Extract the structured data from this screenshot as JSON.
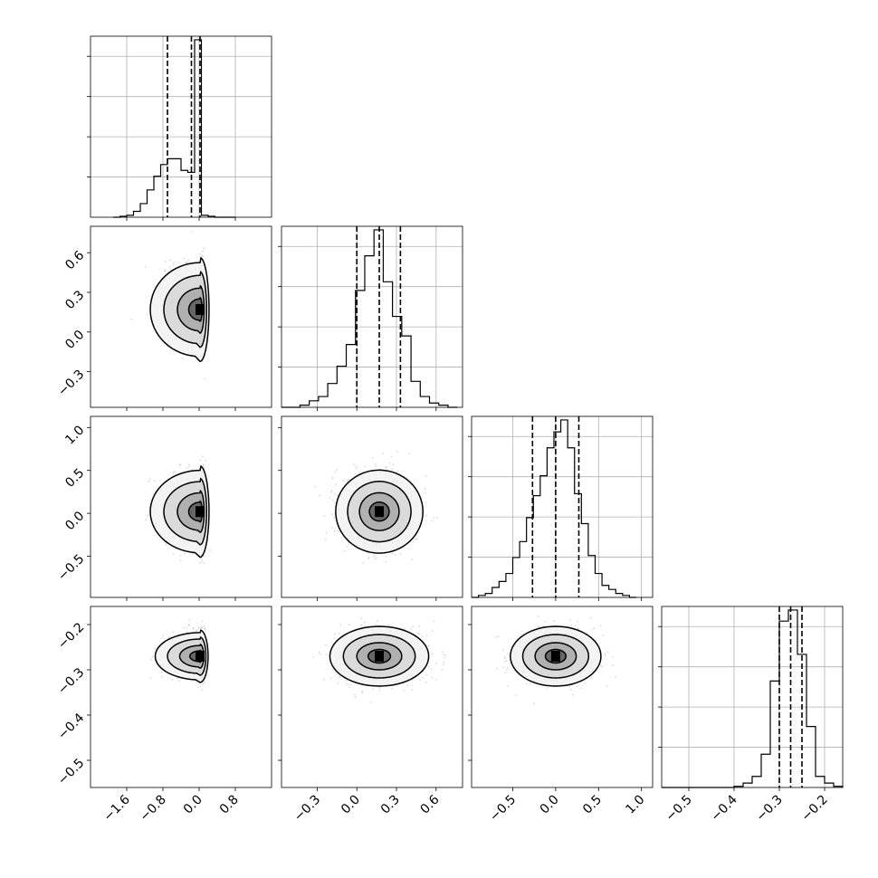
{
  "chart_data": {
    "type": "corner",
    "grid": true,
    "title": "",
    "parameters": [
      {
        "xlim": [
          -2.4,
          1.6
        ],
        "x_ticks": [
          -1.6,
          -0.8,
          0.0,
          0.8
        ],
        "x_tick_labels": [
          "−1.6",
          "−0.8",
          "0.0",
          "0.8"
        ],
        "y_ticks": [
          -0.3,
          0.0,
          0.3,
          0.6
        ],
        "y_tick_labels": [
          "−0.3",
          "0.0",
          "0.3",
          "0.6"
        ],
        "quantiles": [
          -0.7,
          -0.17,
          0.02
        ]
      },
      {
        "xlim": [
          -0.57,
          0.8
        ],
        "x_ticks": [
          -0.3,
          0.0,
          0.3,
          0.6
        ],
        "x_tick_labels": [
          "−0.3",
          "0.0",
          "0.3",
          "0.6"
        ],
        "y_ticks": [
          -0.5,
          0.0,
          0.5,
          1.0
        ],
        "y_tick_labels": [
          "−0.5",
          "0.0",
          "0.5",
          "1.0"
        ],
        "quantiles": [
          0.0,
          0.17,
          0.33
        ]
      },
      {
        "xlim": [
          -0.98,
          1.13
        ],
        "x_ticks": [
          -0.5,
          0.0,
          0.5,
          1.0
        ],
        "x_tick_labels": [
          "−0.5",
          "0.0",
          "0.5",
          "1.0"
        ],
        "y_ticks": [
          -0.5,
          -0.4,
          -0.3,
          -0.2
        ],
        "y_tick_labels": [
          "−0.5",
          "−0.4",
          "−0.3",
          "−0.2"
        ],
        "quantiles": [
          -0.27,
          0.0,
          0.27
        ]
      },
      {
        "xlim": [
          -0.56,
          -0.16
        ],
        "x_ticks": [
          -0.5,
          -0.4,
          -0.3,
          -0.2
        ],
        "x_tick_labels": [
          "−0.5",
          "−0.4",
          "−0.3",
          "−0.2"
        ],
        "quantiles": [
          -0.3,
          -0.275,
          -0.25
        ]
      }
    ],
    "histograms": [
      {
        "bins": [
          -1.9,
          -1.75,
          -1.6,
          -1.45,
          -1.3,
          -1.15,
          -1.0,
          -0.85,
          -0.7,
          -0.55,
          -0.4,
          -0.25,
          -0.1,
          0.05,
          0.2,
          0.35,
          0.5,
          0.65,
          0.8
        ],
        "counts": [
          0,
          1,
          2,
          6,
          14,
          28,
          42,
          54,
          60,
          60,
          48,
          46,
          182,
          2,
          1,
          0,
          0,
          0
        ]
      },
      {
        "bins": [
          -0.57,
          -0.5,
          -0.43,
          -0.36,
          -0.29,
          -0.22,
          -0.15,
          -0.08,
          -0.01,
          0.06,
          0.13,
          0.2,
          0.27,
          0.34,
          0.41,
          0.48,
          0.55,
          0.62,
          0.69,
          0.76
        ],
        "counts": [
          0,
          0,
          2,
          6,
          10,
          22,
          38,
          58,
          108,
          140,
          164,
          116,
          84,
          66,
          24,
          10,
          4,
          2,
          0
        ]
      },
      {
        "bins": [
          -0.98,
          -0.9,
          -0.82,
          -0.74,
          -0.66,
          -0.58,
          -0.5,
          -0.42,
          -0.34,
          -0.26,
          -0.18,
          -0.1,
          -0.02,
          0.06,
          0.14,
          0.22,
          0.3,
          0.38,
          0.46,
          0.54,
          0.62,
          0.7,
          0.78,
          0.86,
          0.94
        ],
        "counts": [
          0,
          2,
          4,
          10,
          16,
          24,
          40,
          56,
          80,
          102,
          122,
          150,
          166,
          178,
          150,
          104,
          74,
          42,
          24,
          12,
          8,
          4,
          2,
          0
        ]
      },
      {
        "bins": [
          -0.56,
          -0.54,
          -0.52,
          -0.5,
          -0.48,
          -0.46,
          -0.44,
          -0.42,
          -0.4,
          -0.38,
          -0.36,
          -0.34,
          -0.32,
          -0.3,
          -0.28,
          -0.26,
          -0.24,
          -0.22,
          -0.2,
          -0.18,
          -0.16
        ],
        "counts": [
          0,
          0,
          0,
          0,
          0,
          0,
          0,
          0,
          1,
          4,
          10,
          30,
          96,
          150,
          160,
          120,
          55,
          10,
          4,
          1
        ]
      }
    ],
    "pairs": [
      {
        "row": 1,
        "col": 0,
        "x_center": 0.02,
        "y_center": 0.17,
        "shape": "lopsided",
        "sigma_x": 0.5,
        "sigma_y": 0.17
      },
      {
        "row": 2,
        "col": 0,
        "x_center": 0.02,
        "y_center": 0.02,
        "shape": "lopsided",
        "sigma_x": 0.5,
        "sigma_y": 0.23
      },
      {
        "row": 2,
        "col": 1,
        "x_center": 0.17,
        "y_center": 0.02,
        "shape": "ellipse",
        "sigma_x": 0.15,
        "sigma_y": 0.22
      },
      {
        "row": 3,
        "col": 0,
        "x_center": 0.02,
        "y_center": -0.27,
        "shape": "lopsided",
        "sigma_x": 0.45,
        "sigma_y": 0.025
      },
      {
        "row": 3,
        "col": 1,
        "x_center": 0.17,
        "y_center": -0.27,
        "shape": "ellipse",
        "sigma_x": 0.17,
        "sigma_y": 0.03
      },
      {
        "row": 3,
        "col": 2,
        "x_center": 0.0,
        "y_center": -0.27,
        "shape": "ellipse",
        "sigma_x": 0.24,
        "sigma_y": 0.03
      }
    ]
  }
}
